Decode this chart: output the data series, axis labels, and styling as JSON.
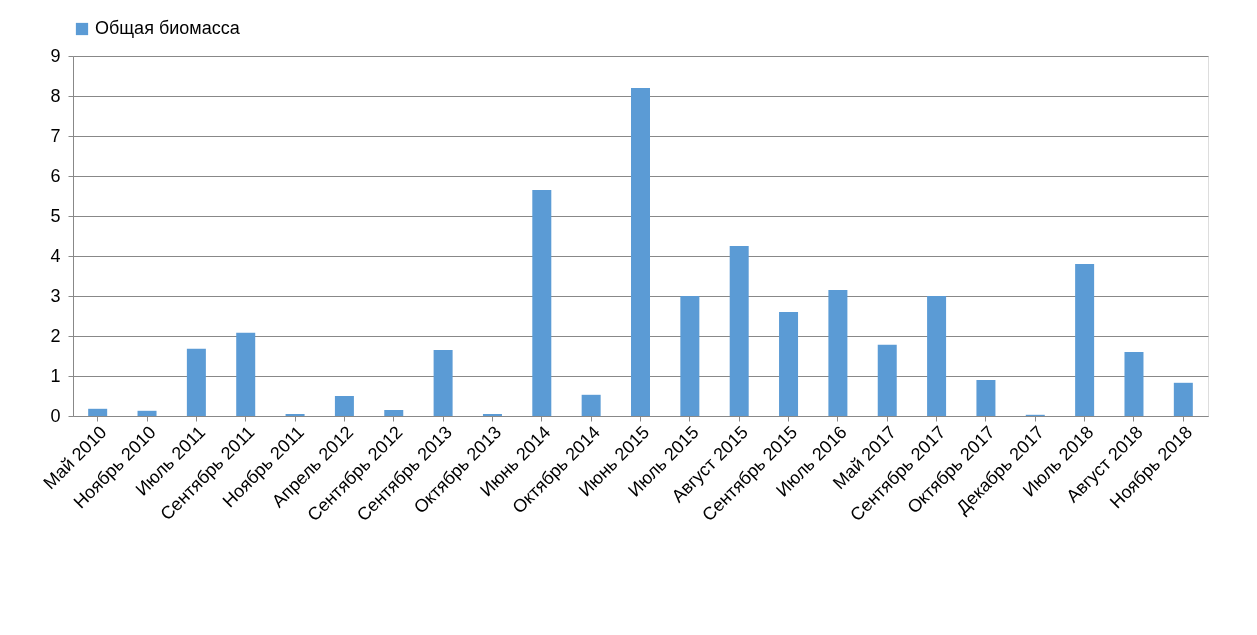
{
  "chart_data": {
    "type": "bar",
    "categories": [
      "Май 2010",
      "Ноябрь 2010",
      "Июль 2011",
      "Сентябрь 2011",
      "Ноябрь 2011",
      "Апрель 2012",
      "Сентябрь 2012",
      "Сентябрь 2013",
      "Октябрь 2013",
      "Июнь 2014",
      "Октябрь 2014",
      "Июнь 2015",
      "Июль 2015",
      "Август 2015",
      "Сентябрь 2015",
      "Июль 2016",
      "Май 2017",
      "Сентябрь 2017",
      "Октябрь 2017",
      "Декабрь 2017",
      "Июль 2018",
      "Август 2018",
      "Ноябрь 2018"
    ],
    "series": [
      {
        "name": "Общая биомасса",
        "color": "#5b9bd5",
        "values": [
          0.18,
          0.13,
          1.68,
          2.08,
          0.05,
          0.5,
          0.15,
          1.65,
          0.05,
          5.65,
          0.53,
          8.2,
          3.0,
          4.25,
          2.6,
          3.15,
          1.78,
          3.0,
          0.9,
          0.03,
          3.8,
          1.6,
          0.83
        ]
      }
    ],
    "ylim": [
      0,
      9
    ],
    "yticks": [
      0,
      1,
      2,
      3,
      4,
      5,
      6,
      7,
      8,
      9
    ],
    "grid": "y",
    "legend": "top"
  }
}
